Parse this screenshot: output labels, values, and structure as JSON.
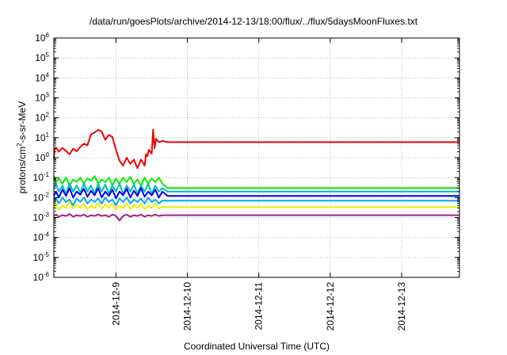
{
  "chart_data": {
    "type": "line",
    "title": "/data/run/goesPlots/archive/2014-12-13/18:00/flux/../flux/5daysMoonFluxes.txt",
    "xlabel": "Coordinated Universal Time (UTC)",
    "ylabel_parts": {
      "pre": "protons/cm",
      "sup": "2",
      "post": "-s-sr-MeV"
    },
    "x_ticks": [
      "2014-12-9",
      "2014-12-10",
      "2014-12-11",
      "2014-12-12",
      "2014-12-13"
    ],
    "x_tick_days": [
      9,
      10,
      11,
      12,
      13
    ],
    "xlim_days": [
      8.13,
      13.81
    ],
    "yscale": "log",
    "ylim": [
      1e-06,
      1000000.0
    ],
    "y_tick_exponents": [
      -6,
      -5,
      -4,
      -3,
      -2,
      -1,
      0,
      1,
      2,
      3,
      4,
      5,
      6
    ],
    "data_end_day": 9.72,
    "grid": true,
    "legend": "none",
    "series": [
      {
        "color": "#ee0000",
        "x_days": [
          8.13,
          8.14,
          8.16,
          8.2,
          8.25,
          8.3,
          8.35,
          8.4,
          8.45,
          8.5,
          8.55,
          8.6,
          8.65,
          8.7,
          8.75,
          8.8,
          8.85,
          8.9,
          8.95,
          9.0,
          9.05,
          9.1,
          9.15,
          9.2,
          9.25,
          9.3,
          9.35,
          9.4,
          9.42,
          9.44,
          9.46,
          9.5,
          9.52,
          9.54,
          9.56,
          9.6,
          9.65,
          9.72,
          13.81
        ],
        "values": [
          0.9,
          2.4,
          3.2,
          2.0,
          3.1,
          2.2,
          1.5,
          2.8,
          2.1,
          3.5,
          5.0,
          4.2,
          15,
          18,
          25,
          20,
          8,
          14,
          11,
          2.5,
          0.7,
          0.4,
          1.0,
          0.5,
          0.8,
          0.3,
          0.8,
          0.4,
          1.5,
          1.2,
          2.5,
          1.6,
          25,
          3,
          9,
          6,
          7,
          6,
          6
        ]
      },
      {
        "color": "#00ee00",
        "x_days": [
          8.13,
          8.16,
          8.2,
          8.25,
          8.3,
          8.35,
          8.4,
          8.45,
          8.5,
          8.55,
          8.6,
          8.65,
          8.7,
          8.75,
          8.8,
          8.85,
          8.9,
          8.95,
          9.0,
          9.05,
          9.1,
          9.15,
          9.2,
          9.25,
          9.3,
          9.35,
          9.4,
          9.45,
          9.5,
          9.55,
          9.6,
          9.65,
          9.72,
          13.81
        ],
        "values": [
          0.12,
          0.06,
          0.09,
          0.05,
          0.1,
          0.04,
          0.08,
          0.06,
          0.1,
          0.05,
          0.09,
          0.07,
          0.12,
          0.05,
          0.08,
          0.06,
          0.1,
          0.04,
          0.09,
          0.05,
          0.1,
          0.06,
          0.11,
          0.05,
          0.08,
          0.04,
          0.1,
          0.05,
          0.09,
          0.06,
          0.1,
          0.05,
          0.03,
          0.03
        ]
      },
      {
        "color": "#00bbbb",
        "x_days": [
          8.13,
          8.16,
          8.2,
          8.25,
          8.3,
          8.35,
          8.4,
          8.45,
          8.5,
          8.55,
          8.6,
          8.65,
          8.7,
          8.75,
          8.8,
          8.85,
          8.9,
          8.95,
          9.0,
          9.05,
          9.1,
          9.15,
          9.2,
          9.25,
          9.3,
          9.35,
          9.4,
          9.45,
          9.5,
          9.55,
          9.6,
          9.65,
          9.72,
          13.81
        ],
        "values": [
          0.03,
          0.05,
          0.02,
          0.04,
          0.015,
          0.05,
          0.02,
          0.04,
          0.018,
          0.05,
          0.02,
          0.04,
          0.015,
          0.05,
          0.02,
          0.045,
          0.016,
          0.04,
          0.02,
          0.05,
          0.015,
          0.04,
          0.02,
          0.045,
          0.016,
          0.04,
          0.02,
          0.05,
          0.015,
          0.04,
          0.02,
          0.03,
          0.02,
          0.02
        ]
      },
      {
        "color": "#0000ee",
        "x_days": [
          8.13,
          8.16,
          8.2,
          8.25,
          8.3,
          8.35,
          8.4,
          8.45,
          8.5,
          8.55,
          8.6,
          8.65,
          8.7,
          8.75,
          8.8,
          8.85,
          8.9,
          8.95,
          9.0,
          9.05,
          9.1,
          9.15,
          9.2,
          9.25,
          9.3,
          9.35,
          9.4,
          9.45,
          9.5,
          9.55,
          9.6,
          9.65,
          9.72,
          13.81
        ],
        "values": [
          0.012,
          0.02,
          0.01,
          0.025,
          0.012,
          0.03,
          0.01,
          0.02,
          0.014,
          0.028,
          0.011,
          0.022,
          0.013,
          0.03,
          0.01,
          0.02,
          0.012,
          0.025,
          0.009,
          0.02,
          0.013,
          0.028,
          0.01,
          0.022,
          0.012,
          0.03,
          0.011,
          0.02,
          0.013,
          0.025,
          0.01,
          0.02,
          0.012,
          0.012
        ]
      },
      {
        "color": "#00a8ee",
        "x_days": [
          8.13,
          8.16,
          8.2,
          8.25,
          8.3,
          8.35,
          8.4,
          8.45,
          8.5,
          8.55,
          8.6,
          8.65,
          8.7,
          8.75,
          8.8,
          8.85,
          8.9,
          8.95,
          9.0,
          9.05,
          9.1,
          9.15,
          9.2,
          9.25,
          9.3,
          9.35,
          9.4,
          9.45,
          9.5,
          9.55,
          9.6,
          9.65,
          9.72,
          13.81
        ],
        "values": [
          0.006,
          0.009,
          0.005,
          0.01,
          0.006,
          0.008,
          0.004,
          0.009,
          0.006,
          0.01,
          0.005,
          0.008,
          0.006,
          0.009,
          0.005,
          0.01,
          0.006,
          0.008,
          0.004,
          0.009,
          0.006,
          0.01,
          0.005,
          0.008,
          0.006,
          0.009,
          0.005,
          0.01,
          0.006,
          0.008,
          0.005,
          0.007,
          0.007,
          0.007
        ]
      },
      {
        "color": "#eeee00",
        "x_days": [
          8.13,
          8.16,
          8.2,
          8.25,
          8.3,
          8.35,
          8.4,
          8.45,
          8.5,
          8.55,
          8.6,
          8.65,
          8.7,
          8.75,
          8.8,
          8.85,
          8.9,
          8.95,
          9.0,
          9.05,
          9.1,
          9.15,
          9.2,
          9.25,
          9.3,
          9.35,
          9.4,
          9.45,
          9.5,
          9.55,
          9.6,
          9.65,
          9.72,
          13.81
        ],
        "values": [
          0.003,
          0.005,
          0.0025,
          0.004,
          0.003,
          0.006,
          0.0028,
          0.0045,
          0.003,
          0.005,
          0.0025,
          0.004,
          0.003,
          0.0055,
          0.0027,
          0.0045,
          0.003,
          0.005,
          0.0025,
          0.004,
          0.003,
          0.005,
          0.0026,
          0.0045,
          0.003,
          0.005,
          0.0025,
          0.004,
          0.003,
          0.005,
          0.0028,
          0.0035,
          0.0033,
          0.0033
        ]
      },
      {
        "color": "#a02080",
        "x_days": [
          8.13,
          8.16,
          8.2,
          8.25,
          8.3,
          8.35,
          8.4,
          8.45,
          8.5,
          8.55,
          8.6,
          8.65,
          8.7,
          8.75,
          8.8,
          8.85,
          8.9,
          8.95,
          9.0,
          9.05,
          9.1,
          9.15,
          9.2,
          9.25,
          9.3,
          9.35,
          9.4,
          9.45,
          9.5,
          9.55,
          9.6,
          9.65,
          9.72,
          13.81
        ],
        "values": [
          0.0012,
          0.0014,
          0.0011,
          0.0013,
          0.0012,
          0.0015,
          0.0011,
          0.0013,
          0.0012,
          0.0014,
          0.0011,
          0.0013,
          0.0012,
          0.0014,
          0.0012,
          0.0013,
          0.0011,
          0.0014,
          0.0012,
          0.0007,
          0.0012,
          0.0014,
          0.0011,
          0.0013,
          0.0012,
          0.0014,
          0.0011,
          0.0013,
          0.0012,
          0.0014,
          0.0012,
          0.0013,
          0.0013,
          0.0013
        ]
      }
    ]
  }
}
